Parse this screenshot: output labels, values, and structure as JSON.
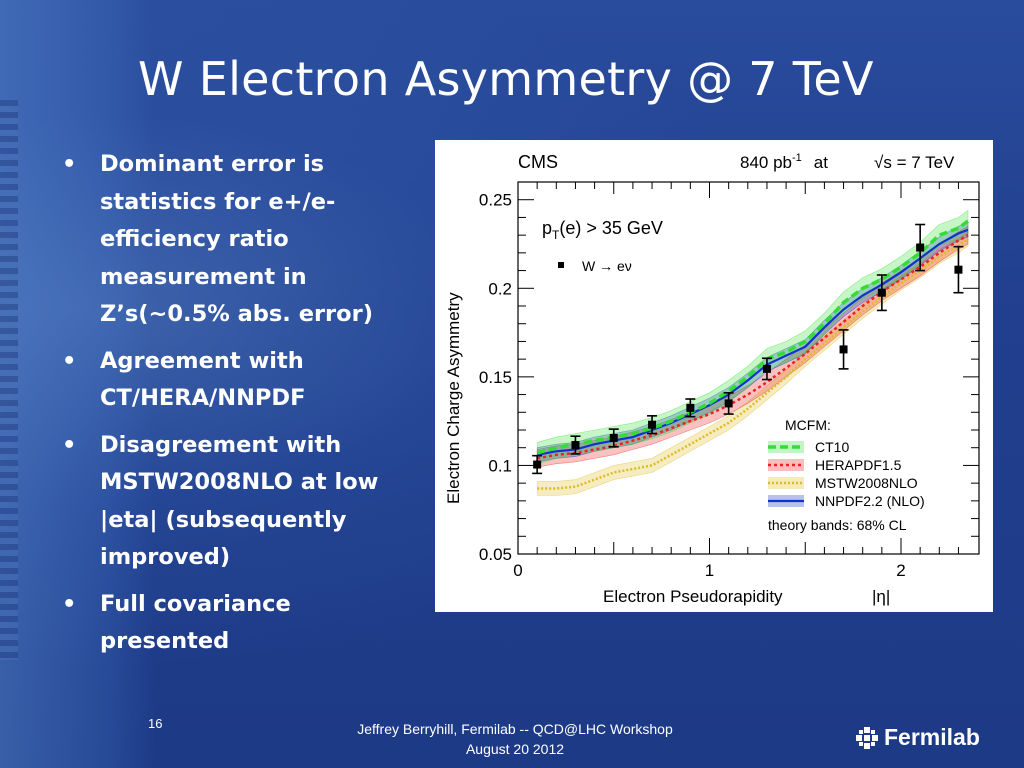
{
  "slide": {
    "title": "W Electron Asymmetry @ 7 TeV",
    "bullets": [
      "Dominant error is statistics for e+/e- efficiency ratio measurement in Z’s(~0.5% abs. error)",
      "Agreement with CT/HERA/NNPDF",
      "Disagreement with MSTW2008NLO at low |eta| (subsequently improved)",
      "Full covariance presented"
    ],
    "bullet_glyph": "•",
    "page_number": "16",
    "footer_line1": "Jeffrey Berryhill, Fermilab -- QCD@LHC Workshop",
    "footer_line2": "August 20 2012",
    "logo_text": "Fermilab",
    "logo_icon": "fermilab-logo-icon"
  },
  "chart_data": {
    "type": "line",
    "experiment": "CMS",
    "luminosity_label": "840 pb",
    "luminosity_exp": "-1",
    "energy_at": "at",
    "sqrt_symbol": "√",
    "energy_label": "s = 7 TeV",
    "cut_label_prefix": "p",
    "cut_label_sub": "T",
    "cut_label_suffix": "(e) > 35 GeV",
    "data_legend": "W → eν",
    "mcfm_title": "MCFM:",
    "theory_note": "theory bands: 68% CL",
    "xlabel": "Electron Pseudorapidity",
    "xlabel_unit": "|η|",
    "ylabel": "Electron Charge Asymmetry",
    "xlim": [
      0,
      2.4
    ],
    "ylim": [
      0.05,
      0.26
    ],
    "x_ticks": [
      {
        "value": 0,
        "label": "0"
      },
      {
        "value": 1,
        "label": "1"
      },
      {
        "value": 2,
        "label": "2"
      }
    ],
    "y_ticks": [
      {
        "value": 0.05,
        "label": "0.05"
      },
      {
        "value": 0.1,
        "label": "0.1"
      },
      {
        "value": 0.15,
        "label": "0.15"
      },
      {
        "value": 0.2,
        "label": "0.2"
      },
      {
        "value": 0.25,
        "label": "0.25"
      }
    ],
    "data": {
      "name": "W → eν",
      "x": [
        0.1,
        0.3,
        0.5,
        0.7,
        0.9,
        1.1,
        1.3,
        1.7,
        1.9,
        2.1,
        2.3
      ],
      "y": [
        0.1005,
        0.1115,
        0.1155,
        0.123,
        0.1325,
        0.135,
        0.1545,
        0.1655,
        0.1975,
        0.223,
        0.2105
      ],
      "err": [
        0.005,
        0.005,
        0.005,
        0.005,
        0.005,
        0.006,
        0.006,
        0.011,
        0.01,
        0.013,
        0.013
      ]
    },
    "series": [
      {
        "name": "CT10",
        "color": "#33dd33",
        "band": 0.006,
        "x": [
          0.1,
          0.2,
          0.3,
          0.4,
          0.5,
          0.6,
          0.7,
          0.8,
          0.9,
          1.0,
          1.1,
          1.2,
          1.3,
          1.4,
          1.5,
          1.6,
          1.7,
          1.8,
          1.9,
          2.0,
          2.1,
          2.2,
          2.3,
          2.35
        ],
        "y": [
          0.107,
          0.11,
          0.112,
          0.114,
          0.116,
          0.118,
          0.121,
          0.125,
          0.13,
          0.135,
          0.142,
          0.15,
          0.16,
          0.164,
          0.17,
          0.18,
          0.192,
          0.2,
          0.205,
          0.212,
          0.22,
          0.23,
          0.234,
          0.238
        ]
      },
      {
        "name": "HERAPDF1.5",
        "color": "#ee2222",
        "band": 0.005,
        "x": [
          0.1,
          0.2,
          0.3,
          0.4,
          0.5,
          0.6,
          0.7,
          0.8,
          0.9,
          1.0,
          1.1,
          1.2,
          1.3,
          1.4,
          1.5,
          1.6,
          1.7,
          1.8,
          1.9,
          2.0,
          2.1,
          2.2,
          2.3,
          2.35
        ],
        "y": [
          0.104,
          0.106,
          0.107,
          0.109,
          0.111,
          0.114,
          0.117,
          0.121,
          0.125,
          0.129,
          0.134,
          0.14,
          0.147,
          0.155,
          0.163,
          0.172,
          0.181,
          0.19,
          0.198,
          0.205,
          0.212,
          0.22,
          0.227,
          0.23
        ]
      },
      {
        "name": "MSTW2008NLO",
        "color": "#ddbb22",
        "band": 0.004,
        "x": [
          0.1,
          0.2,
          0.3,
          0.4,
          0.5,
          0.6,
          0.7,
          0.8,
          0.9,
          1.0,
          1.1,
          1.2,
          1.3,
          1.4,
          1.5,
          1.6,
          1.7,
          1.8,
          1.9,
          2.0,
          2.1,
          2.2,
          2.3,
          2.35
        ],
        "y": [
          0.087,
          0.087,
          0.088,
          0.092,
          0.096,
          0.098,
          0.1,
          0.106,
          0.112,
          0.118,
          0.124,
          0.132,
          0.141,
          0.15,
          0.16,
          0.169,
          0.178,
          0.187,
          0.195,
          0.203,
          0.21,
          0.218,
          0.224,
          0.228
        ]
      },
      {
        "name": "NNPDF2.2 (NLO)",
        "color": "#1133cc",
        "band": 0.004,
        "x": [
          0.1,
          0.2,
          0.3,
          0.4,
          0.5,
          0.6,
          0.7,
          0.8,
          0.9,
          1.0,
          1.1,
          1.2,
          1.3,
          1.4,
          1.5,
          1.6,
          1.7,
          1.8,
          1.9,
          2.0,
          2.1,
          2.2,
          2.3,
          2.35
        ],
        "y": [
          0.106,
          0.108,
          0.109,
          0.112,
          0.114,
          0.116,
          0.12,
          0.124,
          0.129,
          0.134,
          0.14,
          0.148,
          0.157,
          0.162,
          0.167,
          0.178,
          0.188,
          0.196,
          0.202,
          0.209,
          0.217,
          0.225,
          0.231,
          0.233
        ]
      }
    ]
  }
}
